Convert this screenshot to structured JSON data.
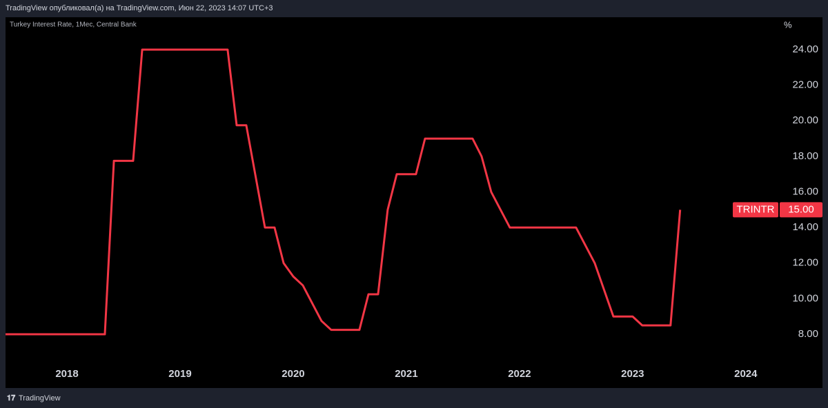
{
  "header": "TradingView опубликовал(а) на TradingView.com, Июн 22, 2023 14:07 UTC+3",
  "footer": "TradingView",
  "chart_data": {
    "type": "line",
    "title": "Turkey Interest Rate, 1Мес, Central Bank",
    "y_unit": "%",
    "x": [
      2017.457,
      2018.335,
      2018.415,
      2018.585,
      2018.665,
      2019.42,
      2019.5,
      2019.585,
      2019.75,
      2019.835,
      2019.915,
      2020.0,
      2020.085,
      2020.25,
      2020.335,
      2020.585,
      2020.665,
      2020.75,
      2020.835,
      2020.915,
      2021.085,
      2021.165,
      2021.585,
      2021.665,
      2021.75,
      2021.915,
      2022.5,
      2022.665,
      2022.83,
      2023.0,
      2023.085,
      2023.335,
      2023.42
    ],
    "series": [
      {
        "name": "TRINTR",
        "color": "#f23645",
        "values": [
          8,
          8,
          17.75,
          17.75,
          24,
          24,
          19.75,
          19.75,
          14,
          14,
          12,
          11.25,
          10.75,
          8.75,
          8.25,
          8.25,
          10.25,
          10.25,
          15,
          17,
          17,
          19,
          19,
          18,
          16,
          14,
          14,
          12,
          9,
          9,
          8.5,
          8.5,
          15
        ],
        "last_value": {
          "value": 15,
          "label": "15.00"
        }
      }
    ],
    "xlim": [
      2017.457,
      2024.3
    ],
    "xticks": [
      2018,
      2019,
      2020,
      2021,
      2022,
      2023,
      2024
    ],
    "ylim": [
      4.98,
      25.82
    ],
    "yticks": [
      {
        "value": 8,
        "label": "8.00"
      },
      {
        "value": 10,
        "label": "10.00"
      },
      {
        "value": 12,
        "label": "12.00"
      },
      {
        "value": 14,
        "label": "14.00"
      },
      {
        "value": 16,
        "label": "16.00"
      },
      {
        "value": 18,
        "label": "18.00"
      },
      {
        "value": 20,
        "label": "20.00"
      },
      {
        "value": 22,
        "label": "22.00"
      },
      {
        "value": 24,
        "label": "24.00"
      }
    ],
    "grid": false
  }
}
